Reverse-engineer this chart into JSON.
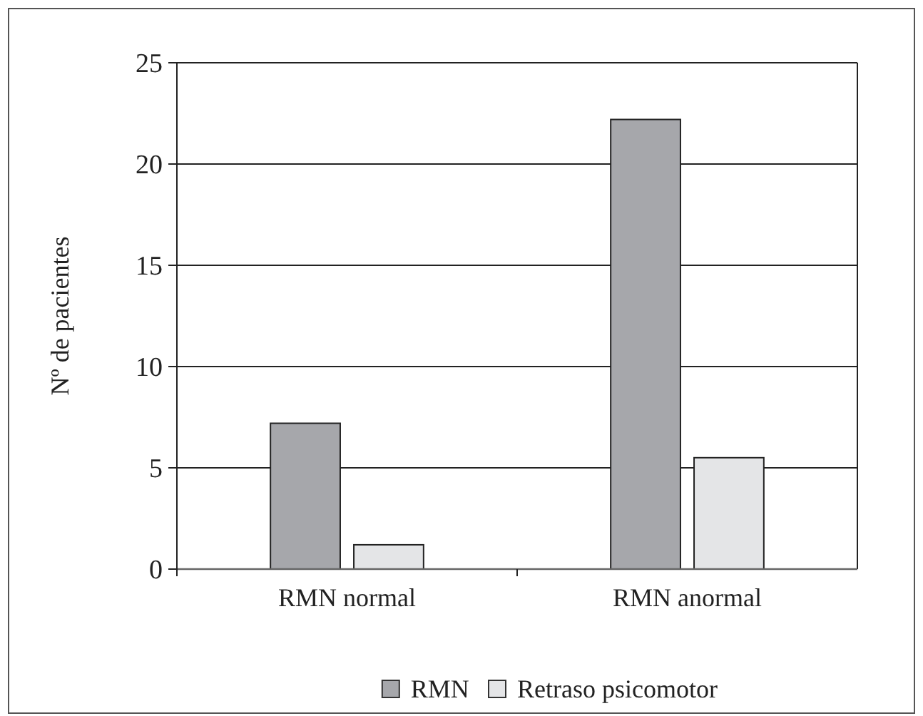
{
  "chart_data": {
    "type": "bar",
    "ylabel": "Nº de pacientes",
    "categories": [
      "RMN normal",
      "RMN anormal"
    ],
    "series": [
      {
        "name": "RMN",
        "color": "#a6a7ab",
        "values": [
          7.2,
          22.2
        ]
      },
      {
        "name": "Retraso psicomotor",
        "color": "#e4e5e7",
        "values": [
          1.2,
          5.5
        ]
      }
    ],
    "ylim": [
      0,
      25
    ],
    "yticks": [
      0,
      5,
      10,
      15,
      20,
      25
    ],
    "grid": "y",
    "legend": "bottom"
  }
}
